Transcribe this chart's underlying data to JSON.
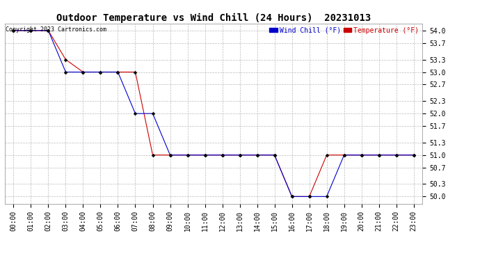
{
  "title": "Outdoor Temperature vs Wind Chill (24 Hours)  20231013",
  "copyright": "Copyright 2023 Cartronics.com",
  "legend_wind_chill": "Wind Chill (°F)",
  "legend_temperature": "Temperature (°F)",
  "x_labels": [
    "00:00",
    "01:00",
    "02:00",
    "03:00",
    "04:00",
    "05:00",
    "06:00",
    "07:00",
    "08:00",
    "09:00",
    "10:00",
    "11:00",
    "12:00",
    "13:00",
    "14:00",
    "15:00",
    "16:00",
    "17:00",
    "18:00",
    "19:00",
    "20:00",
    "21:00",
    "22:00",
    "23:00"
  ],
  "temperature_x": [
    0,
    1,
    2,
    3,
    4,
    5,
    6,
    7,
    8,
    9,
    10,
    11,
    12,
    13,
    14,
    15,
    16,
    17,
    18,
    19,
    20,
    21,
    22,
    23
  ],
  "temperature_y": [
    54.0,
    54.0,
    54.0,
    53.3,
    53.0,
    53.0,
    53.0,
    53.0,
    51.0,
    51.0,
    51.0,
    51.0,
    51.0,
    51.0,
    51.0,
    51.0,
    50.0,
    50.0,
    51.0,
    51.0,
    51.0,
    51.0,
    51.0,
    51.0
  ],
  "wind_chill_x": [
    0,
    1,
    2,
    3,
    4,
    5,
    6,
    7,
    8,
    9,
    10,
    11,
    12,
    13,
    14,
    15,
    16,
    17,
    18,
    19,
    20,
    21,
    22,
    23
  ],
  "wind_chill_y": [
    54.0,
    54.0,
    54.0,
    53.0,
    53.0,
    53.0,
    53.0,
    52.0,
    52.0,
    51.0,
    51.0,
    51.0,
    51.0,
    51.0,
    51.0,
    51.0,
    50.0,
    50.0,
    50.0,
    51.0,
    51.0,
    51.0,
    51.0,
    51.0
  ],
  "ylim_min": 49.83,
  "ylim_max": 54.17,
  "yticks": [
    50.0,
    50.3,
    50.7,
    51.0,
    51.3,
    51.7,
    52.0,
    52.3,
    52.7,
    53.0,
    53.3,
    53.7,
    54.0
  ],
  "temp_color": "#cc0000",
  "wind_color": "#0000cc",
  "background_color": "#ffffff",
  "grid_color": "#bbbbbb",
  "title_fontsize": 10,
  "tick_fontsize": 7,
  "marker_size": 2.5
}
